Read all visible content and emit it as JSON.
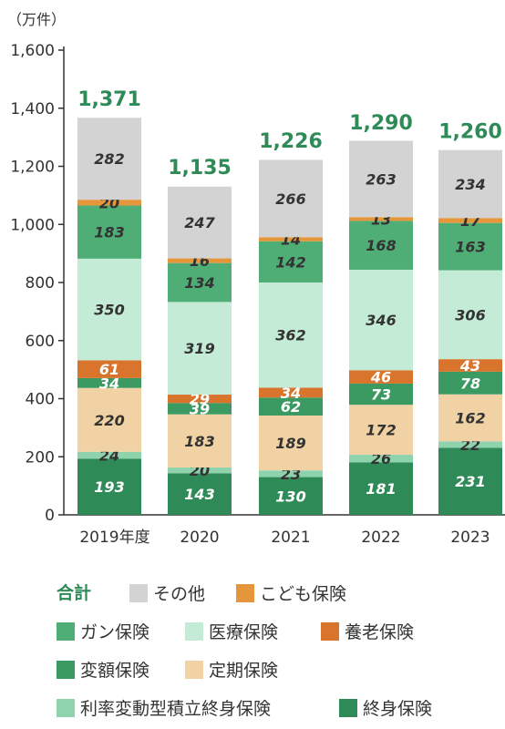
{
  "chart_data": {
    "type": "bar",
    "stacked": true,
    "unit_label": "（万件）",
    "categories": [
      "2019年度",
      "2020",
      "2021",
      "2022",
      "2023"
    ],
    "ylim": [
      0,
      1600
    ],
    "yticks": [
      "0",
      "200",
      "400",
      "600",
      "800",
      "1,000",
      "1,200",
      "1,400",
      "1,600"
    ],
    "grid": false,
    "totals": [
      "1,371",
      "1,135",
      "1,226",
      "1,290",
      "1,260"
    ],
    "total_values": [
      1371,
      1135,
      1226,
      1290,
      1260
    ],
    "series": [
      {
        "name": "終身保険",
        "color": "#2e8b57",
        "label_color": "#ffffff",
        "values": [
          193,
          143,
          130,
          181,
          231
        ],
        "labels": [
          "193",
          "143",
          "130",
          "181",
          "231"
        ]
      },
      {
        "name": "利率変動型積立終身保険",
        "color": "#8fd3ad",
        "label_color": "#333333",
        "values": [
          24,
          20,
          23,
          26,
          22
        ],
        "labels": [
          "24",
          "20",
          "23",
          "26",
          "22"
        ]
      },
      {
        "name": "定期保険",
        "color": "#f0d2a4",
        "label_color": "#333333",
        "values": [
          220,
          183,
          189,
          172,
          162
        ],
        "labels": [
          "220",
          "183",
          "189",
          "172",
          "162"
        ]
      },
      {
        "name": "変額保険",
        "color": "#3a9a62",
        "label_color": "#ffffff",
        "values": [
          34,
          39,
          62,
          73,
          78
        ],
        "labels": [
          "34",
          "39",
          "62",
          "73",
          "78"
        ]
      },
      {
        "name": "養老保険",
        "color": "#d9742c",
        "label_color": "#ffffff",
        "values": [
          61,
          29,
          34,
          46,
          43
        ],
        "labels": [
          "61",
          "29",
          "34",
          "46",
          "43"
        ]
      },
      {
        "name": "医療保険",
        "color": "#c3ebd5",
        "label_color": "#333333",
        "values": [
          350,
          319,
          362,
          346,
          306
        ],
        "labels": [
          "350",
          "319",
          "362",
          "346",
          "306"
        ]
      },
      {
        "name": "ガン保険",
        "color": "#4fae76",
        "label_color": "#333333",
        "values": [
          183,
          134,
          142,
          168,
          163
        ],
        "labels": [
          "183",
          "134",
          "142",
          "168",
          "163"
        ]
      },
      {
        "name": "こども保険",
        "color": "#e6963a",
        "label_color": "#333333",
        "values": [
          20,
          16,
          14,
          13,
          17
        ],
        "labels": [
          "20",
          "16",
          "14",
          "13",
          "17"
        ]
      },
      {
        "name": "その他",
        "color": "#d3d3d3",
        "label_color": "#333333",
        "values": [
          282,
          247,
          266,
          263,
          234
        ],
        "labels": [
          "282",
          "247",
          "266",
          "263",
          "234"
        ]
      }
    ],
    "legend": {
      "total_label": "合計",
      "total_color": "#2e8b57",
      "position": "bottom"
    }
  }
}
